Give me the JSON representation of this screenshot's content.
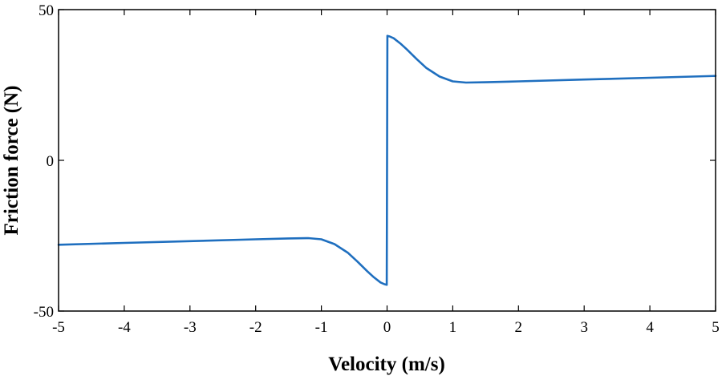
{
  "chart_data": {
    "type": "line",
    "title": "",
    "xlabel": "Velocity (m/s)",
    "ylabel": "Friction force (N)",
    "xlim": [
      -5,
      5
    ],
    "ylim": [
      -50,
      50
    ],
    "x_ticks": [
      -5,
      -4,
      -3,
      -2,
      -1,
      0,
      1,
      2,
      3,
      4,
      5
    ],
    "x_tick_labels": [
      "-5",
      "-4",
      "-3",
      "-2",
      "-1",
      "0",
      "1",
      "2",
      "3",
      "4",
      "5"
    ],
    "y_ticks": [
      -50,
      0,
      50
    ],
    "y_tick_labels": [
      "-50",
      "0",
      "50"
    ],
    "grid": false,
    "legend": "none",
    "series": [
      {
        "name": "Friction force",
        "color": "#1f6fbf",
        "x": [
          -5,
          -4,
          -3,
          -2,
          -1.5,
          -1.2,
          -1.0,
          -0.8,
          -0.6,
          -0.45,
          -0.3,
          -0.2,
          -0.1,
          -0.04,
          -0.005,
          0.005,
          0.04,
          0.1,
          0.2,
          0.3,
          0.45,
          0.6,
          0.8,
          1.0,
          1.2,
          1.5,
          2,
          3,
          4,
          5
        ],
        "y": [
          -28.0,
          -27.4,
          -26.8,
          -26.2,
          -25.9,
          -25.8,
          -26.2,
          -27.8,
          -30.6,
          -33.6,
          -36.8,
          -38.8,
          -40.5,
          -41.1,
          -41.3,
          41.3,
          41.1,
          40.5,
          38.8,
          36.8,
          33.6,
          30.6,
          27.8,
          26.2,
          25.8,
          25.9,
          26.2,
          26.8,
          27.4,
          28.0
        ]
      }
    ]
  }
}
